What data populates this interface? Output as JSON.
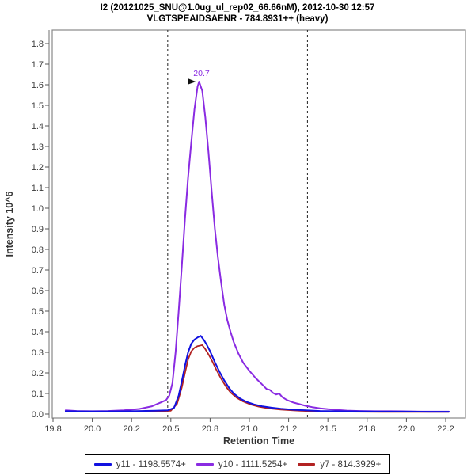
{
  "title": {
    "line1": "I2 (20121025_SNU@1.0ug_ul_rep02_66.66nM), 2012-10-30 12:57",
    "line2": "VLGTSPEAIDSAENR - 784.8931++ (heavy)"
  },
  "chart_data": {
    "type": "line",
    "title": "I2 (20121025_SNU@1.0ug_ul_rep02_66.66nM), 2012-10-30 12:57",
    "subtitle": "VLGTSPEAIDSAENR - 784.8931++ (heavy)",
    "xlabel": "Retention Time",
    "ylabel": "Intensity 10^6",
    "xlim": [
      19.745,
      22.376
    ],
    "ylim": [
      -0.019,
      1.865
    ],
    "grid": false,
    "legend_position": "bottom-center",
    "x_axis": {
      "tick_values": [
        19.75,
        20.0,
        20.25,
        20.5,
        20.75,
        21.0,
        21.25,
        21.5,
        21.75,
        22.0,
        22.25
      ],
      "tick_labels": [
        "19.8",
        "20.0",
        "20.2",
        "20.5",
        "20.8",
        "21.0",
        "21.2",
        "21.5",
        "21.8",
        "22.0",
        "22.2"
      ]
    },
    "y_axis": {
      "tick_labels": [
        "0.0",
        "0.1",
        "0.2",
        "0.3",
        "0.4",
        "0.5",
        "0.6",
        "0.7",
        "0.8",
        "0.9",
        "1.0",
        "1.1",
        "1.2",
        "1.3",
        "1.4",
        "1.5",
        "1.6",
        "1.7",
        "1.8"
      ]
    },
    "integration_boundaries": [
      20.48,
      21.37
    ],
    "peak_annotation": {
      "text": "20.7",
      "rt": 20.68,
      "intensity": 1.615,
      "color": "#8a2be2",
      "marker": "black-right-arrow"
    },
    "series": [
      {
        "id": "y11",
        "name": "y11 - 1198.5574+",
        "color": "#1111e0",
        "width": 2,
        "points": [
          [
            19.83,
            0.014
          ],
          [
            19.95,
            0.013
          ],
          [
            20.1,
            0.013
          ],
          [
            20.25,
            0.014
          ],
          [
            20.4,
            0.016
          ],
          [
            20.48,
            0.018
          ],
          [
            20.52,
            0.03
          ],
          [
            20.55,
            0.09
          ],
          [
            20.57,
            0.16
          ],
          [
            20.59,
            0.235
          ],
          [
            20.61,
            0.3
          ],
          [
            20.63,
            0.342
          ],
          [
            20.65,
            0.362
          ],
          [
            20.67,
            0.372
          ],
          [
            20.69,
            0.38
          ],
          [
            20.71,
            0.36
          ],
          [
            20.73,
            0.335
          ],
          [
            20.75,
            0.305
          ],
          [
            20.78,
            0.252
          ],
          [
            20.81,
            0.205
          ],
          [
            20.84,
            0.163
          ],
          [
            20.87,
            0.128
          ],
          [
            20.9,
            0.1
          ],
          [
            20.94,
            0.076
          ],
          [
            20.98,
            0.06
          ],
          [
            21.03,
            0.047
          ],
          [
            21.08,
            0.038
          ],
          [
            21.14,
            0.031
          ],
          [
            21.2,
            0.026
          ],
          [
            21.28,
            0.021
          ],
          [
            21.36,
            0.018
          ],
          [
            21.45,
            0.015
          ],
          [
            21.55,
            0.014
          ],
          [
            21.7,
            0.013
          ],
          [
            21.85,
            0.012
          ],
          [
            22.0,
            0.012
          ],
          [
            22.15,
            0.011
          ],
          [
            22.27,
            0.011
          ]
        ]
      },
      {
        "id": "y10",
        "name": "y10 - 1111.5254+",
        "color": "#8a2be2",
        "width": 2,
        "points": [
          [
            19.83,
            0.018
          ],
          [
            19.9,
            0.015
          ],
          [
            20.0,
            0.014
          ],
          [
            20.1,
            0.015
          ],
          [
            20.2,
            0.018
          ],
          [
            20.3,
            0.025
          ],
          [
            20.38,
            0.038
          ],
          [
            20.4,
            0.045
          ],
          [
            20.44,
            0.058
          ],
          [
            20.47,
            0.068
          ],
          [
            20.49,
            0.09
          ],
          [
            20.51,
            0.15
          ],
          [
            20.53,
            0.3
          ],
          [
            20.55,
            0.5
          ],
          [
            20.57,
            0.72
          ],
          [
            20.59,
            0.95
          ],
          [
            20.61,
            1.15
          ],
          [
            20.63,
            1.32
          ],
          [
            20.65,
            1.48
          ],
          [
            20.67,
            1.59
          ],
          [
            20.68,
            1.615
          ],
          [
            20.7,
            1.57
          ],
          [
            20.72,
            1.44
          ],
          [
            20.74,
            1.27
          ],
          [
            20.76,
            1.08
          ],
          [
            20.78,
            0.9
          ],
          [
            20.8,
            0.76
          ],
          [
            20.82,
            0.64
          ],
          [
            20.84,
            0.53
          ],
          [
            20.86,
            0.455
          ],
          [
            20.88,
            0.4
          ],
          [
            20.9,
            0.35
          ],
          [
            20.93,
            0.295
          ],
          [
            20.96,
            0.25
          ],
          [
            21.0,
            0.21
          ],
          [
            21.04,
            0.175
          ],
          [
            21.08,
            0.145
          ],
          [
            21.11,
            0.122
          ],
          [
            21.13,
            0.118
          ],
          [
            21.15,
            0.103
          ],
          [
            21.17,
            0.095
          ],
          [
            21.19,
            0.1
          ],
          [
            21.21,
            0.082
          ],
          [
            21.24,
            0.068
          ],
          [
            21.28,
            0.056
          ],
          [
            21.32,
            0.048
          ],
          [
            21.36,
            0.04
          ],
          [
            21.4,
            0.034
          ],
          [
            21.45,
            0.028
          ],
          [
            21.5,
            0.024
          ],
          [
            21.56,
            0.02
          ],
          [
            21.62,
            0.017
          ],
          [
            21.7,
            0.015
          ],
          [
            21.8,
            0.014
          ],
          [
            21.9,
            0.014
          ],
          [
            22.0,
            0.013
          ],
          [
            22.1,
            0.012
          ],
          [
            22.2,
            0.012
          ],
          [
            22.27,
            0.012
          ]
        ]
      },
      {
        "id": "y7",
        "name": "y7 - 814.3929+",
        "color": "#b22222",
        "width": 1.8,
        "points": [
          [
            19.83,
            0.012
          ],
          [
            19.95,
            0.011
          ],
          [
            20.1,
            0.011
          ],
          [
            20.25,
            0.012
          ],
          [
            20.4,
            0.013
          ],
          [
            20.5,
            0.016
          ],
          [
            20.54,
            0.05
          ],
          [
            20.57,
            0.13
          ],
          [
            20.59,
            0.2
          ],
          [
            20.61,
            0.265
          ],
          [
            20.63,
            0.305
          ],
          [
            20.65,
            0.322
          ],
          [
            20.67,
            0.33
          ],
          [
            20.7,
            0.335
          ],
          [
            20.72,
            0.315
          ],
          [
            20.74,
            0.29
          ],
          [
            20.76,
            0.262
          ],
          [
            20.79,
            0.215
          ],
          [
            20.82,
            0.172
          ],
          [
            20.85,
            0.135
          ],
          [
            20.88,
            0.105
          ],
          [
            20.92,
            0.079
          ],
          [
            20.96,
            0.061
          ],
          [
            21.01,
            0.046
          ],
          [
            21.06,
            0.036
          ],
          [
            21.12,
            0.028
          ],
          [
            21.2,
            0.022
          ],
          [
            21.28,
            0.018
          ],
          [
            21.38,
            0.014
          ],
          [
            21.5,
            0.012
          ],
          [
            21.65,
            0.011
          ],
          [
            21.85,
            0.01
          ],
          [
            22.05,
            0.01
          ],
          [
            22.27,
            0.01
          ]
        ]
      }
    ],
    "colors": {
      "axis": "#888888",
      "tick_text": "#3c3c3c",
      "axis_title": "#333333",
      "boundary": "#222222",
      "annotation_marker": "#111111"
    }
  },
  "legend": {
    "items": [
      {
        "label": "y11 - 1198.5574+",
        "color": "#1111e0"
      },
      {
        "label": "y10 - 1111.5254+",
        "color": "#8a2be2"
      },
      {
        "label": "y7 - 814.3929+",
        "color": "#b22222"
      }
    ]
  }
}
